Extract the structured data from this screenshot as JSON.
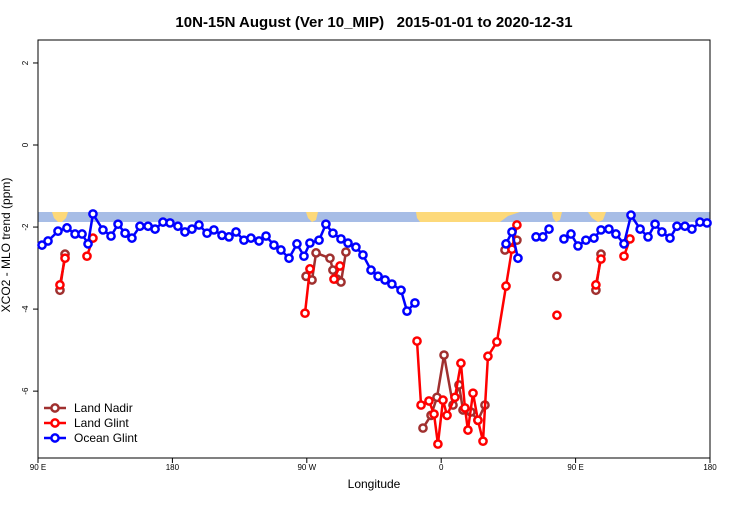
{
  "chart_data": {
    "type": "line",
    "title": "10N-15N August (Ver 10_MIP)   2015-01-01 to 2020-12-31",
    "xlabel": "Longitude",
    "ylabel": "XCO2 - MLO trend (ppm)",
    "xlim": [
      90,
      540
    ],
    "ylim": [
      -7.63,
      2.56
    ],
    "xticks": [
      {
        "value": 90,
        "label": "90 E"
      },
      180,
      {
        "value": 270,
        "label": "90 W"
      },
      {
        "value": 360,
        "label": "0"
      },
      {
        "value": 450,
        "label": "90 E"
      },
      {
        "value": 540,
        "label": "180"
      }
    ],
    "yticks": [
      -6,
      -4,
      -2,
      0,
      2
    ],
    "legend": "lower left",
    "series": [
      {
        "name": "Land Nadir",
        "color": "#a0302f",
        "x": [
          104.7,
          108.1,
          null,
          269.5,
          273.5,
          276.2,
          285.5,
          287.5,
          290.2,
          292.9,
          296.2,
          null,
          347.8,
          353.2,
          357.2,
          361.9,
          367.9,
          371.9,
          374.6,
          379.9,
          384.6,
          389.3,
          null,
          402.7,
          410.7,
          null,
          437.5,
          null,
          463.6,
          467.0
        ],
        "values": [
          -3.54,
          -2.66,
          null,
          -3.2,
          -3.29,
          -2.63,
          -2.76,
          -3.05,
          -3.27,
          -3.34,
          -2.61,
          null,
          -6.9,
          -6.59,
          -6.15,
          -5.12,
          -6.34,
          -5.85,
          -6.46,
          -6.51,
          -6.71,
          -6.34,
          null,
          -2.56,
          -2.32,
          null,
          -3.2,
          null,
          -3.54,
          -2.66
        ]
      },
      {
        "name": "Land Glint",
        "color": "#ff0000",
        "x": [
          104.7,
          108.1,
          null,
          122.8,
          126.8,
          null,
          268.8,
          272.1,
          null,
          288.2,
          292.2,
          null,
          343.8,
          346.5,
          351.8,
          355.2,
          357.8,
          361.2,
          363.9,
          369.2,
          373.2,
          375.9,
          377.9,
          381.3,
          384.6,
          388.0,
          391.3,
          397.3,
          403.4,
          407.4,
          410.7,
          null,
          437.5,
          null,
          463.6,
          467.0,
          null,
          482.4,
          486.4
        ],
        "values": [
          -3.41,
          -2.76,
          null,
          -2.71,
          -2.27,
          null,
          -4.1,
          -3.02,
          null,
          -3.27,
          -2.95,
          null,
          -4.78,
          -6.34,
          -6.24,
          -6.56,
          -7.29,
          -6.22,
          -6.59,
          -6.15,
          -5.32,
          -6.41,
          -6.95,
          -6.05,
          -6.71,
          -7.22,
          -5.15,
          -4.8,
          -3.44,
          -2.54,
          -1.95,
          null,
          -4.15,
          null,
          -3.41,
          -2.78,
          null,
          -2.71,
          -2.29
        ]
      },
      {
        "name": "Ocean Glint",
        "color": "#0000ff",
        "x": [
          92.7,
          96.7,
          103.4,
          109.4,
          114.8,
          119.5,
          123.5,
          126.8,
          133.5,
          138.9,
          143.6,
          148.3,
          152.9,
          158.3,
          163.7,
          168.4,
          173.7,
          178.4,
          183.7,
          188.4,
          193.1,
          197.8,
          203.2,
          207.8,
          213.2,
          217.9,
          222.6,
          227.9,
          232.6,
          238.0,
          242.7,
          248.0,
          252.7,
          258.1,
          263.4,
          268.1,
          272.1,
          278.2,
          282.8,
          287.5,
          292.9,
          297.6,
          302.9,
          307.6,
          313.0,
          317.7,
          322.4,
          327.0,
          333.1,
          337.1,
          342.4,
          null,
          403.4,
          407.4,
          411.4,
          null,
          423.5,
          428.1,
          432.2,
          null,
          442.2,
          446.9,
          451.6,
          456.9,
          462.3,
          467.0,
          472.3,
          477.0,
          482.4,
          487.1,
          493.2,
          498.5,
          503.2,
          507.8,
          513.2,
          517.9,
          523.2,
          527.9,
          533.3,
          538.0
        ],
        "values": [
          -2.44,
          -2.34,
          -2.1,
          -2.02,
          -2.17,
          -2.17,
          -2.41,
          -1.68,
          -2.07,
          -2.22,
          -1.93,
          -2.15,
          -2.27,
          -1.98,
          -1.98,
          -2.05,
          -1.88,
          -1.9,
          -1.98,
          -2.12,
          -2.05,
          -1.95,
          -2.15,
          -2.07,
          -2.2,
          -2.24,
          -2.12,
          -2.32,
          -2.27,
          -2.34,
          -2.22,
          -2.44,
          -2.56,
          -2.76,
          -2.41,
          -2.71,
          -2.39,
          -2.32,
          -1.93,
          -2.15,
          -2.29,
          -2.39,
          -2.49,
          -2.68,
          -3.05,
          -3.2,
          -3.29,
          -3.39,
          -3.54,
          -4.05,
          -3.85,
          null,
          -2.41,
          -2.12,
          -2.76,
          null,
          -2.24,
          -2.24,
          -2.05,
          null,
          -2.29,
          -2.17,
          -2.46,
          -2.32,
          -2.27,
          -2.07,
          -2.05,
          -2.17,
          -2.41,
          -1.71,
          -2.05,
          -2.24,
          -1.93,
          -2.12,
          -2.27,
          -1.98,
          -1.98,
          -2.05,
          -1.88,
          -1.9
        ]
      }
    ]
  }
}
